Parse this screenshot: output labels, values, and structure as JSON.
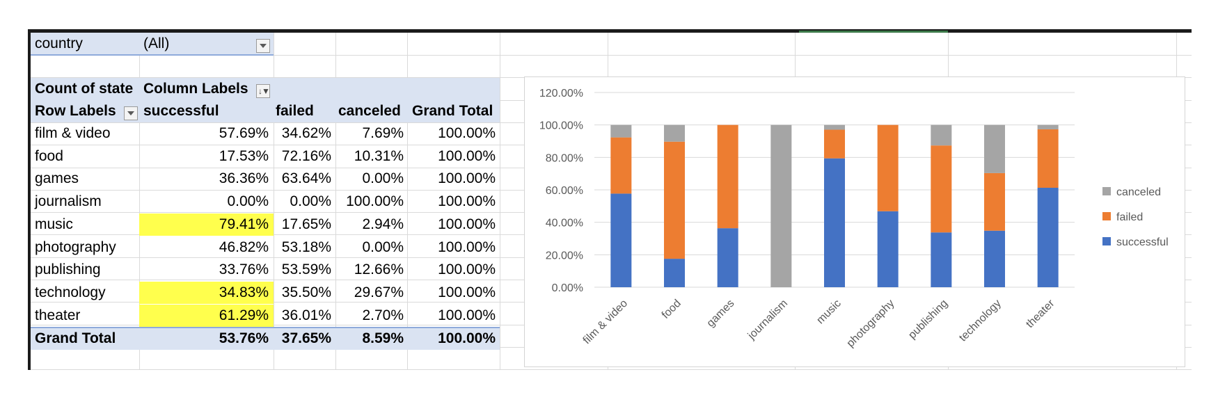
{
  "filter": {
    "label": "country",
    "value": "(All)"
  },
  "pivot": {
    "corner_label": "Count of state",
    "column_labels_header": "Column Labels",
    "row_labels_header": "Row Labels",
    "columns": [
      "successful",
      "failed",
      "canceled",
      "Grand Total"
    ],
    "rows": [
      {
        "label": "film & video",
        "values": [
          "57.69%",
          "34.62%",
          "7.69%",
          "100.00%"
        ],
        "highlight": false
      },
      {
        "label": "food",
        "values": [
          "17.53%",
          "72.16%",
          "10.31%",
          "100.00%"
        ],
        "highlight": false
      },
      {
        "label": "games",
        "values": [
          "36.36%",
          "63.64%",
          "0.00%",
          "100.00%"
        ],
        "highlight": false
      },
      {
        "label": "journalism",
        "values": [
          "0.00%",
          "0.00%",
          "100.00%",
          "100.00%"
        ],
        "highlight": false
      },
      {
        "label": "music",
        "values": [
          "79.41%",
          "17.65%",
          "2.94%",
          "100.00%"
        ],
        "highlight": true
      },
      {
        "label": "photography",
        "values": [
          "46.82%",
          "53.18%",
          "0.00%",
          "100.00%"
        ],
        "highlight": false
      },
      {
        "label": "publishing",
        "values": [
          "33.76%",
          "53.59%",
          "12.66%",
          "100.00%"
        ],
        "highlight": false
      },
      {
        "label": "technology",
        "values": [
          "34.83%",
          "35.50%",
          "29.67%",
          "100.00%"
        ],
        "highlight": true
      },
      {
        "label": "theater",
        "values": [
          "61.29%",
          "36.01%",
          "2.70%",
          "100.00%"
        ],
        "highlight": true
      }
    ],
    "grand_total": {
      "label": "Grand Total",
      "values": [
        "53.76%",
        "37.65%",
        "8.59%",
        "100.00%"
      ]
    },
    "highlight_color": "#ffff4d",
    "header_band_color": "#dae3f2"
  },
  "chart_data": {
    "type": "bar",
    "stacked": true,
    "categories": [
      "film & video",
      "food",
      "games",
      "journalism",
      "music",
      "photography",
      "publishing",
      "technology",
      "theater"
    ],
    "series": [
      {
        "name": "successful",
        "color": "#4472c4",
        "values": [
          57.69,
          17.53,
          36.36,
          0.0,
          79.41,
          46.82,
          33.76,
          34.83,
          61.29
        ]
      },
      {
        "name": "failed",
        "color": "#ed7d31",
        "values": [
          34.62,
          72.16,
          63.64,
          0.0,
          17.65,
          53.18,
          53.59,
          35.5,
          36.01
        ]
      },
      {
        "name": "canceled",
        "color": "#a5a5a5",
        "values": [
          7.69,
          10.31,
          0.0,
          100.0,
          2.94,
          0.0,
          12.66,
          29.67,
          2.7
        ]
      }
    ],
    "ylim": [
      0,
      120
    ],
    "yticks": [
      "0.00%",
      "20.00%",
      "40.00%",
      "60.00%",
      "80.00%",
      "100.00%",
      "120.00%"
    ],
    "grid": true,
    "legend": {
      "position": "right",
      "order": [
        "canceled",
        "failed",
        "successful"
      ]
    }
  }
}
